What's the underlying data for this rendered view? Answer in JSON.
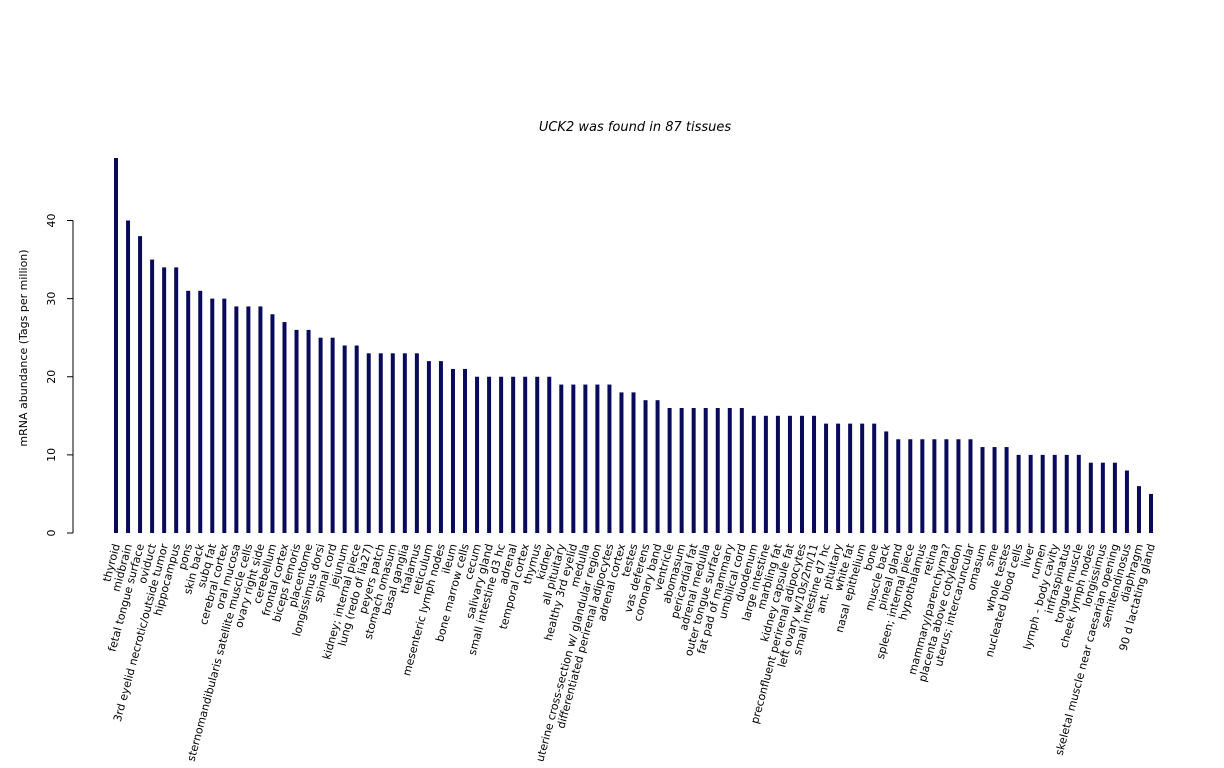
{
  "chart_data": {
    "type": "bar",
    "title": "UCK2  was found in  87  tissues",
    "y_label": "mRNA abundance (Tags per million)",
    "color": "#0a0a5a",
    "ylim": [
      0,
      48
    ],
    "yticks": [
      0,
      10,
      20,
      30,
      40
    ],
    "categories": [
      "thyroid",
      "midbrain",
      "fetal tongue surface",
      "oviduct",
      "3rd eyelid necrotic/outside tumor",
      "hippocampus",
      "pons",
      "skin back",
      "subq fat",
      "cerebral cortex",
      "oral mucosa",
      "sternomandibularis satellite muscle cells",
      "ovary right side",
      "cerebellum",
      "frontal cortex",
      "biceps femoris",
      "placentome",
      "longissimus dorsi",
      "spinal cord",
      "jejunum",
      "kidney; internal piece",
      "lung (redo of lia27)",
      "peyers patch",
      "stomach omasum",
      "basal ganglia",
      "thalamus",
      "reticulum",
      "mesenteric lymph nodes",
      "ileum",
      "bone marrow cells",
      "cecum",
      "salivary gland",
      "small intestine d3 hc",
      "adrenal",
      "temporal cortex",
      "thymus",
      "kidney",
      "all pituitary",
      "healthy 3rd eyelid",
      "medulla",
      "uterine cross-section w/ glandular region",
      "differentiated perirenal adipocytes",
      "adrenal cortex",
      "testes",
      "vas deferens",
      "coronary band",
      "ventricle",
      "abomasum",
      "pericardial fat",
      "adrenal medulla",
      "outer tongue surface",
      "fat pad of mammary",
      "umbilical cord",
      "duodenum",
      "large intestine",
      "marbling fat",
      "kidney capsule fat",
      "preconfluent perirenal adipocytes",
      "left ovary w/10s/2m/11",
      "small intestine d7 hc",
      "ant. pituitary",
      "white fat",
      "nasal epithelium",
      "bone",
      "muscle back",
      "pineal gland",
      "spleen; internal piece",
      "hypothalamus",
      "retina",
      "mammary/parenchyma?",
      "placenta above cotyledon",
      "uterus; intercaruncular",
      "omasum",
      "sme",
      "whole testes",
      "nucleated blood cells",
      "liver",
      "rumen",
      "lymph - body cavity",
      "infraspinatus",
      "tongue muscle",
      "cheek lymph nodes",
      "longissimus",
      "skeletal muscle near caesarian opening",
      "semitendinosus",
      "diaphragm",
      "90 d lactating gland"
    ],
    "values": [
      48,
      40,
      38,
      35,
      34,
      34,
      31,
      31,
      30,
      30,
      29,
      29,
      29,
      28,
      27,
      26,
      26,
      25,
      25,
      24,
      24,
      23,
      23,
      23,
      23,
      23,
      22,
      22,
      21,
      21,
      20,
      20,
      20,
      20,
      20,
      20,
      20,
      19,
      19,
      19,
      19,
      19,
      18,
      18,
      17,
      17,
      16,
      16,
      16,
      16,
      16,
      16,
      16,
      15,
      15,
      15,
      15,
      15,
      15,
      14,
      14,
      14,
      14,
      14,
      13,
      12,
      12,
      12,
      12,
      12,
      12,
      12,
      11,
      11,
      11,
      10,
      10,
      10,
      10,
      10,
      10,
      9,
      9,
      9,
      8,
      6,
      5
    ]
  }
}
